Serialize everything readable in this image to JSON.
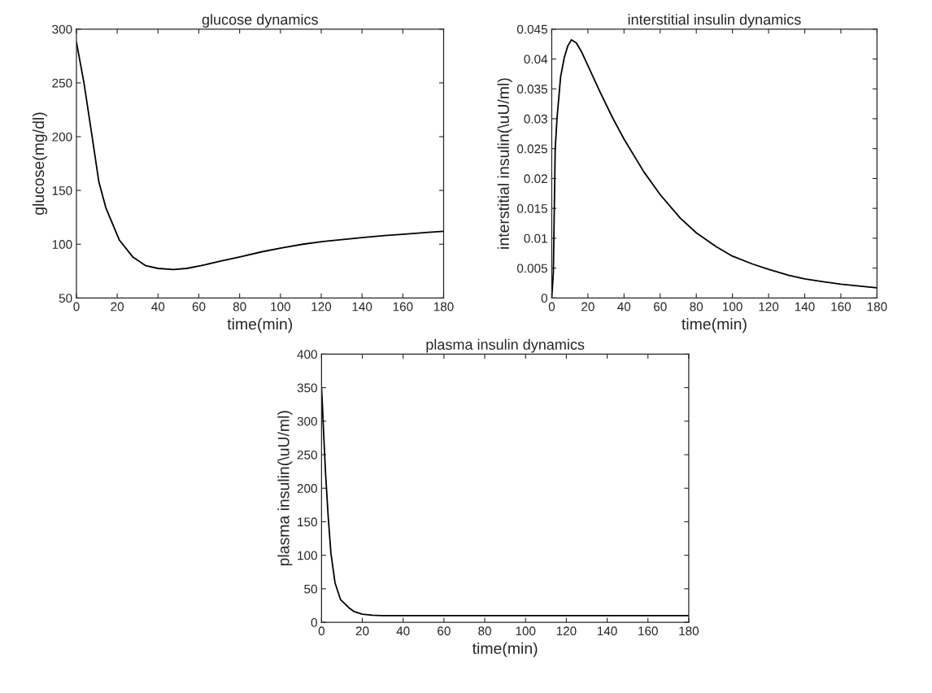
{
  "chart_data": [
    {
      "type": "line",
      "title": "glucose dynamics",
      "xlabel": "time(min)",
      "ylabel": "glucose(mg/dl)",
      "xlim": [
        0,
        180
      ],
      "xticks": [
        0,
        20,
        40,
        60,
        80,
        100,
        120,
        140,
        160,
        180
      ],
      "ylim": [
        50,
        300
      ],
      "yticks": [
        50,
        100,
        150,
        200,
        250,
        300
      ],
      "grid": false,
      "legend": false,
      "marker": "none",
      "line_style": "solid",
      "series": [
        {
          "color": "#000000",
          "x": [
            0,
            3.7,
            7.7,
            11,
            14.4,
            21,
            27.7,
            34,
            40,
            47.6,
            54,
            61,
            70,
            81,
            91,
            101,
            111,
            121,
            131,
            141,
            151,
            161,
            171,
            180
          ],
          "values": [
            288,
            250,
            200,
            158,
            134,
            104,
            88,
            80,
            77.5,
            76.5,
            77.5,
            80,
            84,
            88.6,
            93,
            96.7,
            100,
            102.5,
            104.5,
            106.3,
            108,
            109.4,
            110.8,
            112
          ]
        }
      ]
    },
    {
      "type": "line",
      "title": "interstitial insulin dynamics",
      "xlabel": "time(min)",
      "ylabel": "interstitial insulin(\\uU/ml)",
      "xlim": [
        0,
        180
      ],
      "xticks": [
        0,
        20,
        40,
        60,
        80,
        100,
        120,
        140,
        160,
        180
      ],
      "ylim": [
        0,
        0.045
      ],
      "yticks": [
        0,
        0.005,
        0.01,
        0.015,
        0.02,
        0.025,
        0.03,
        0.035,
        0.04,
        0.045
      ],
      "grid": false,
      "legend": false,
      "marker": "none",
      "line_style": "solid",
      "series": [
        {
          "color": "#000000",
          "x": [
            0,
            0.9,
            1.9,
            2.9,
            4.9,
            6.9,
            8.9,
            10.9,
            13.6,
            16.5,
            20,
            27,
            33.6,
            40,
            51,
            60,
            71,
            80,
            91,
            100,
            111,
            120,
            131,
            140,
            151,
            160,
            170,
            180
          ],
          "values": [
            0,
            0.0043,
            0.0248,
            0.03,
            0.037,
            0.0402,
            0.0422,
            0.0432,
            0.0427,
            0.0412,
            0.0389,
            0.0343,
            0.0302,
            0.0266,
            0.0211,
            0.0173,
            0.0134,
            0.0109,
            0.0086,
            0.007,
            0.0057,
            0.0048,
            0.0038,
            0.0032,
            0.0027,
            0.0023,
            0.002,
            0.0017
          ]
        }
      ]
    },
    {
      "type": "line",
      "title": "plasma insulin dynamics",
      "xlabel": "time(min)",
      "ylabel": "plasma insulin(\\uU/ml)",
      "xlim": [
        0,
        180
      ],
      "xticks": [
        0,
        20,
        40,
        60,
        80,
        100,
        120,
        140,
        160,
        180
      ],
      "ylim": [
        0,
        400
      ],
      "yticks": [
        0,
        50,
        100,
        150,
        200,
        250,
        300,
        350,
        400
      ],
      "grid": false,
      "legend": false,
      "marker": "none",
      "line_style": "solid",
      "series": [
        {
          "color": "#000000",
          "x": [
            0,
            0.4,
            1.1,
            2,
            3.3,
            4.6,
            6.6,
            9.3,
            13.3,
            16,
            20,
            25,
            30,
            40,
            60,
            100,
            140,
            180
          ],
          "values": [
            350,
            326,
            277,
            221,
            156,
            103,
            59,
            34,
            22,
            16,
            12,
            10.5,
            10,
            10,
            10,
            10,
            10,
            10
          ]
        }
      ]
    }
  ]
}
